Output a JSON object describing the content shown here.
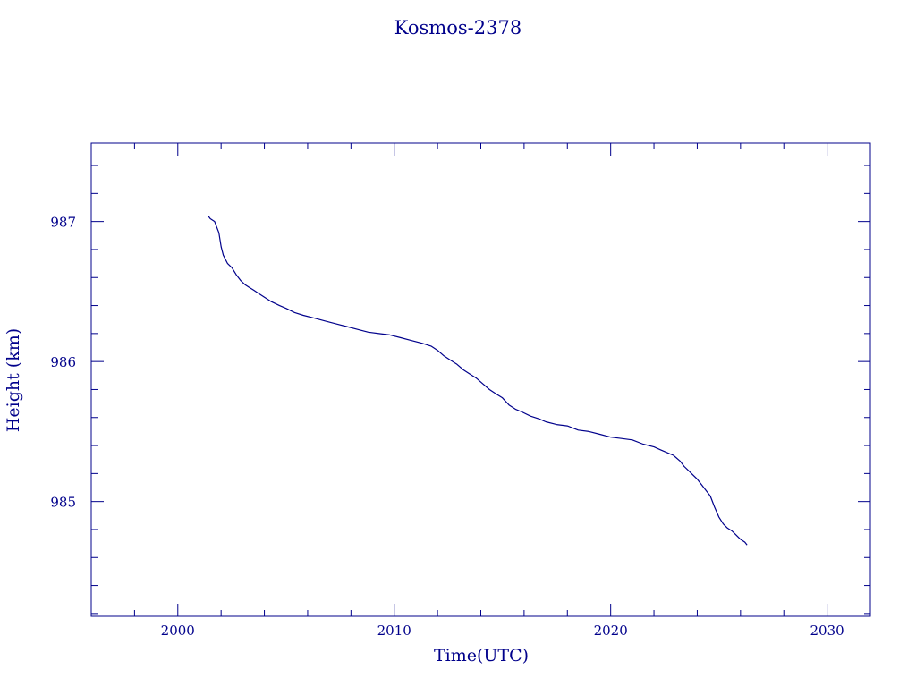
{
  "chart_data": {
    "type": "line",
    "title": "Kosmos-2378",
    "xlabel": "Time(UTC)",
    "ylabel": "Height (km)",
    "xlim": [
      1996.0,
      2032.0
    ],
    "ylim": [
      984.18,
      987.56
    ],
    "x_ticks": [
      2000,
      2010,
      2020,
      2030
    ],
    "y_ticks": [
      985,
      986,
      987
    ],
    "grid": false,
    "series": [
      {
        "x": [
          2001.4,
          2001.5,
          2001.7,
          2001.9,
          2002.0,
          2002.1,
          2002.3,
          2002.5,
          2002.7,
          2002.9,
          2003.1,
          2003.3,
          2003.5,
          2003.7,
          2003.9,
          2004.0,
          2004.3,
          2004.7,
          2005.0,
          2005.4,
          2005.8,
          2006.3,
          2006.8,
          2007.3,
          2007.8,
          2008.3,
          2008.8,
          2009.3,
          2009.8,
          2010.3,
          2010.8,
          2011.3,
          2011.7,
          2012.0,
          2012.3,
          2012.6,
          2012.9,
          2013.2,
          2013.5,
          2013.8,
          2014.1,
          2014.4,
          2014.7,
          2015.0,
          2015.3,
          2015.6,
          2015.9,
          2016.3,
          2016.7,
          2017.0,
          2017.5,
          2018.0,
          2018.5,
          2019.0,
          2019.5,
          2020.0,
          2020.5,
          2021.0,
          2021.5,
          2022.0,
          2022.3,
          2022.6,
          2022.9,
          2023.2,
          2023.4,
          2023.6,
          2023.8,
          2024.0,
          2024.2,
          2024.4,
          2024.6,
          2024.8,
          2025.0,
          2025.2,
          2025.4,
          2025.6,
          2025.8,
          2026.0,
          2026.2,
          2026.3
        ],
        "y": [
          987.04,
          987.02,
          987.0,
          986.92,
          986.82,
          986.76,
          986.7,
          986.67,
          986.62,
          986.58,
          986.55,
          986.53,
          986.51,
          986.49,
          986.47,
          986.46,
          986.43,
          986.4,
          986.38,
          986.35,
          986.33,
          986.31,
          986.29,
          986.27,
          986.25,
          986.23,
          986.21,
          986.2,
          986.19,
          986.17,
          986.15,
          986.13,
          986.11,
          986.08,
          986.04,
          986.01,
          985.98,
          985.94,
          985.91,
          985.88,
          985.84,
          985.8,
          985.77,
          985.74,
          985.69,
          985.66,
          985.64,
          985.61,
          985.59,
          985.57,
          985.55,
          985.54,
          985.51,
          985.5,
          985.48,
          985.46,
          985.45,
          985.44,
          985.41,
          985.39,
          985.37,
          985.35,
          985.33,
          985.29,
          985.25,
          985.22,
          985.19,
          985.16,
          985.12,
          985.08,
          985.04,
          984.96,
          984.89,
          984.84,
          984.81,
          984.79,
          984.76,
          984.73,
          984.71,
          984.69
        ]
      }
    ]
  }
}
